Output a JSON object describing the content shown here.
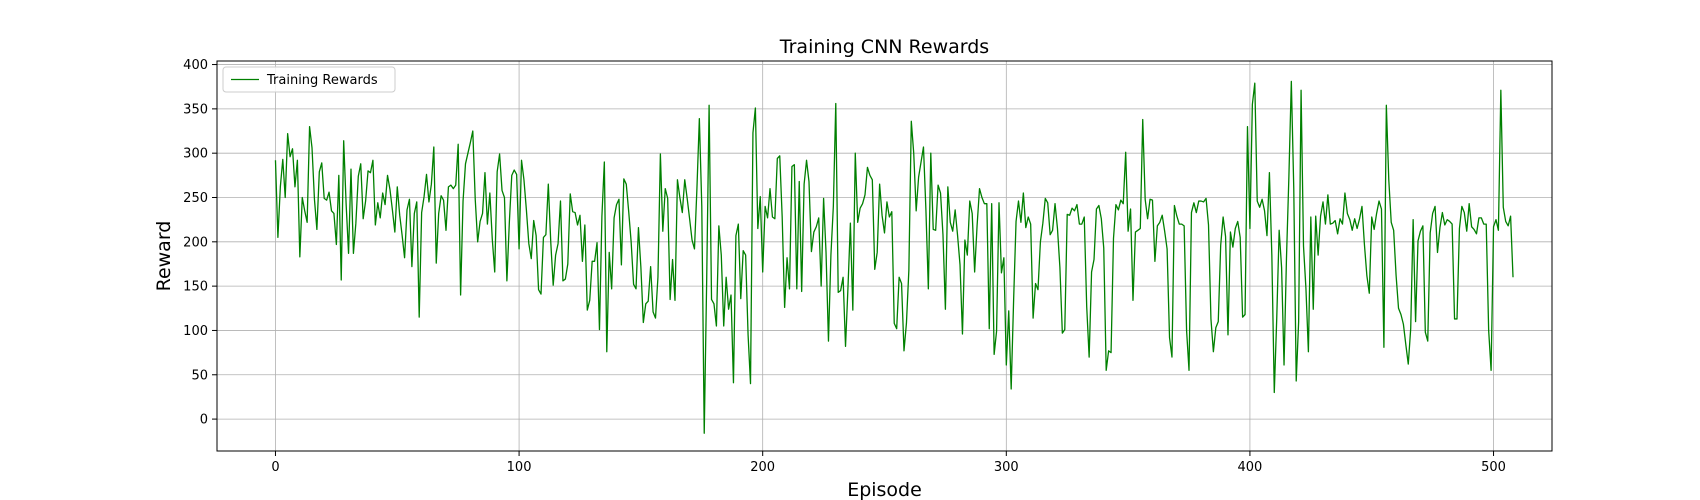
{
  "chart_data": {
    "type": "line",
    "title": "Training CNN Rewards",
    "xlabel": "Episode",
    "ylabel": "Reward",
    "xlim": [
      -24,
      524
    ],
    "ylim": [
      -36,
      404
    ],
    "xticks": [
      0,
      100,
      200,
      300,
      400,
      500
    ],
    "yticks": [
      0,
      50,
      100,
      150,
      200,
      250,
      300,
      350,
      400
    ],
    "grid": true,
    "legend_position": "top-left",
    "series": [
      {
        "name": "Training Rewards",
        "color": "#008000",
        "x_start": 0,
        "x_step": 1,
        "values": [
          292,
          205,
          262,
          293,
          250,
          322,
          296,
          305,
          262,
          292,
          183,
          250,
          235,
          222,
          330,
          306,
          248,
          214,
          279,
          289,
          249,
          247,
          256,
          235,
          232,
          197,
          275,
          157,
          314,
          243,
          187,
          282,
          187,
          221,
          274,
          288,
          226,
          246,
          280,
          278,
          292,
          219,
          244,
          227,
          255,
          242,
          275,
          259,
          236,
          211,
          262,
          230,
          207,
          182,
          236,
          248,
          172,
          232,
          245,
          115,
          233,
          251,
          276,
          245,
          265,
          307,
          176,
          232,
          252,
          247,
          213,
          262,
          264,
          260,
          264,
          310,
          140,
          246,
          288,
          300,
          312,
          325,
          248,
          200,
          223,
          232,
          278,
          220,
          255,
          203,
          166,
          279,
          299,
          258,
          250,
          156,
          222,
          275,
          281,
          276,
          192,
          292,
          270,
          236,
          198,
          181,
          224,
          207,
          146,
          141,
          205,
          208,
          265,
          200,
          151,
          185,
          198,
          246,
          156,
          158,
          175,
          254,
          234,
          233,
          219,
          230,
          178,
          219,
          123,
          134,
          178,
          178,
          199,
          101,
          229,
          290,
          76,
          188,
          147,
          227,
          242,
          248,
          174,
          271,
          265,
          234,
          200,
          152,
          147,
          216,
          171,
          109,
          130,
          133,
          172,
          121,
          114,
          160,
          299,
          212,
          260,
          249,
          135,
          180,
          134,
          270,
          250,
          233,
          270,
          249,
          226,
          202,
          192,
          260,
          339,
          240,
          -16,
          155,
          354,
          135,
          130,
          105,
          218,
          185,
          105,
          160,
          124,
          140,
          41,
          207,
          220,
          136,
          190,
          185,
          95,
          40,
          323,
          351,
          215,
          251,
          166,
          240,
          227,
          260,
          228,
          226,
          294,
          297,
          228,
          126,
          182,
          147,
          285,
          287,
          147,
          268,
          144,
          265,
          292,
          268,
          189,
          211,
          217,
          227,
          150,
          249,
          188,
          88,
          185,
          240,
          356,
          143,
          145,
          160,
          82,
          148,
          221,
          123,
          300,
          222,
          238,
          243,
          253,
          284,
          275,
          270,
          169,
          188,
          265,
          230,
          210,
          245,
          228,
          234,
          108,
          102,
          160,
          153,
          77,
          108,
          168,
          336,
          300,
          235,
          273,
          290,
          307,
          236,
          147,
          300,
          214,
          213,
          264,
          255,
          208,
          124,
          262,
          222,
          212,
          236,
          207,
          174,
          96,
          202,
          185,
          246,
          232,
          166,
          218,
          260,
          250,
          243,
          243,
          102,
          243,
          73,
          99,
          244,
          165,
          182,
          61,
          122,
          34,
          134,
          223,
          246,
          222,
          255,
          216,
          228,
          220,
          114,
          153,
          146,
          200,
          221,
          249,
          244,
          208,
          213,
          243,
          215,
          171,
          97,
          101,
          231,
          230,
          238,
          235,
          242,
          220,
          220,
          228,
          127,
          70,
          166,
          180,
          237,
          241,
          226,
          193,
          55,
          77,
          75,
          204,
          242,
          236,
          247,
          243,
          301,
          212,
          237,
          134,
          211,
          213,
          215,
          338,
          248,
          226,
          248,
          247,
          178,
          218,
          222,
          230,
          212,
          192,
          92,
          70,
          241,
          229,
          220,
          220,
          218,
          100,
          55,
          233,
          244,
          233,
          246,
          246,
          245,
          249,
          219,
          113,
          76,
          103,
          110,
          196,
          228,
          206,
          95,
          211,
          194,
          215,
          223,
          205,
          115,
          118,
          330,
          215,
          355,
          379,
          246,
          239,
          248,
          235,
          207,
          278,
          185,
          30,
          113,
          213,
          171,
          61,
          181,
          274,
          381,
          260,
          43,
          110,
          371,
          195,
          147,
          76,
          228,
          124,
          229,
          185,
          229,
          245,
          220,
          253,
          220,
          221,
          224,
          209,
          226,
          220,
          255,
          232,
          225,
          213,
          226,
          215,
          226,
          240,
          197,
          162,
          142,
          228,
          214,
          232,
          246,
          237,
          81,
          354,
          270,
          222,
          213,
          162,
          125,
          118,
          107,
          84,
          62,
          102,
          225,
          110,
          201,
          212,
          218,
          98,
          88,
          210,
          232,
          240,
          188,
          216,
          233,
          219,
          225,
          223,
          220,
          113,
          113,
          215,
          240,
          233,
          212,
          243,
          217,
          214,
          209,
          227,
          227,
          220,
          220,
          100,
          55,
          217,
          225,
          213,
          371,
          239,
          223,
          218,
          229,
          160
        ]
      }
    ]
  }
}
